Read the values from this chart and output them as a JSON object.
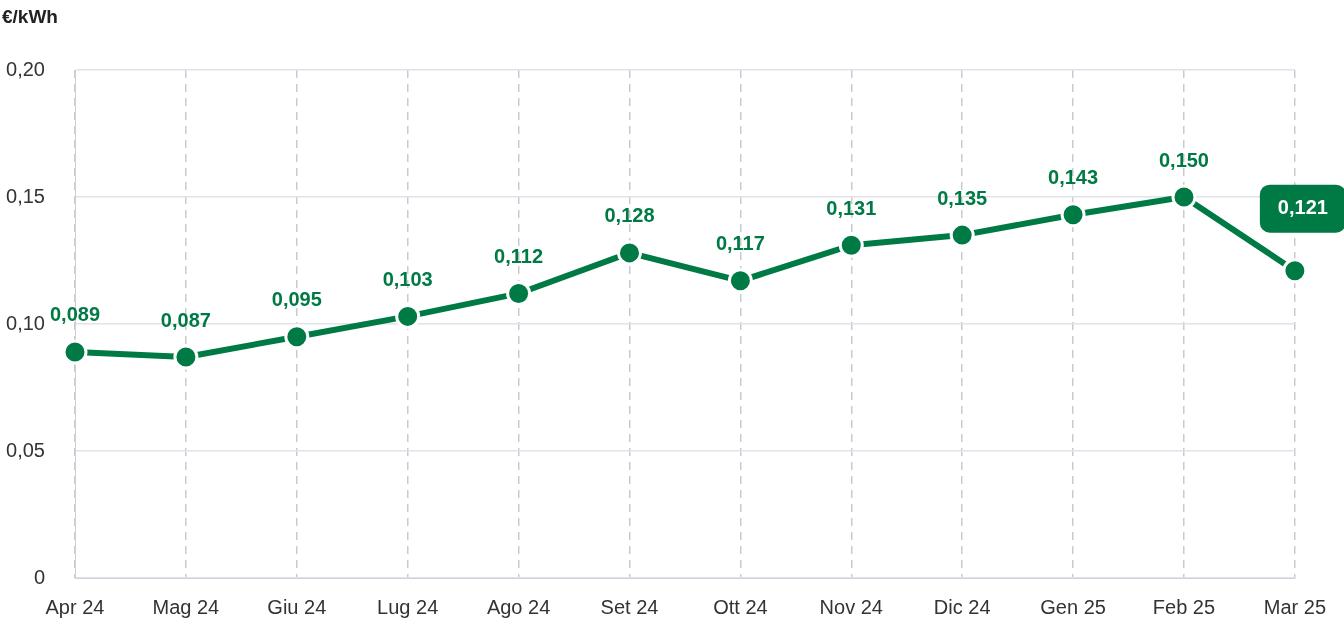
{
  "chart_data": {
    "type": "line",
    "ylabel": "€/kWh",
    "categories": [
      "Apr 24",
      "Mag 24",
      "Giu 24",
      "Lug 24",
      "Ago 24",
      "Set 24",
      "Ott 24",
      "Nov 24",
      "Dic 24",
      "Gen 25",
      "Feb 25",
      "Mar 25"
    ],
    "series": [
      {
        "color": "#007a45",
        "values": [
          0.089,
          0.087,
          0.095,
          0.103,
          0.112,
          0.128,
          0.117,
          0.131,
          0.135,
          0.143,
          0.15,
          0.121
        ],
        "value_labels": [
          "0,089",
          "0,087",
          "0,095",
          "0,103",
          "0,112",
          "0,128",
          "0,117",
          "0,131",
          "0,135",
          "0,143",
          "0,150",
          "0,121"
        ]
      }
    ],
    "ylim": [
      0,
      0.2
    ],
    "yticks": [
      0,
      {
        "value": 0.05,
        "label": "0,05"
      },
      {
        "value": 0.1,
        "label": "0,10"
      },
      {
        "value": 0.15,
        "label": "0,15"
      },
      {
        "value": 0.2,
        "label": "0,20"
      }
    ],
    "grid": true,
    "legend": false,
    "marker": "circle",
    "line_style": "solid"
  }
}
